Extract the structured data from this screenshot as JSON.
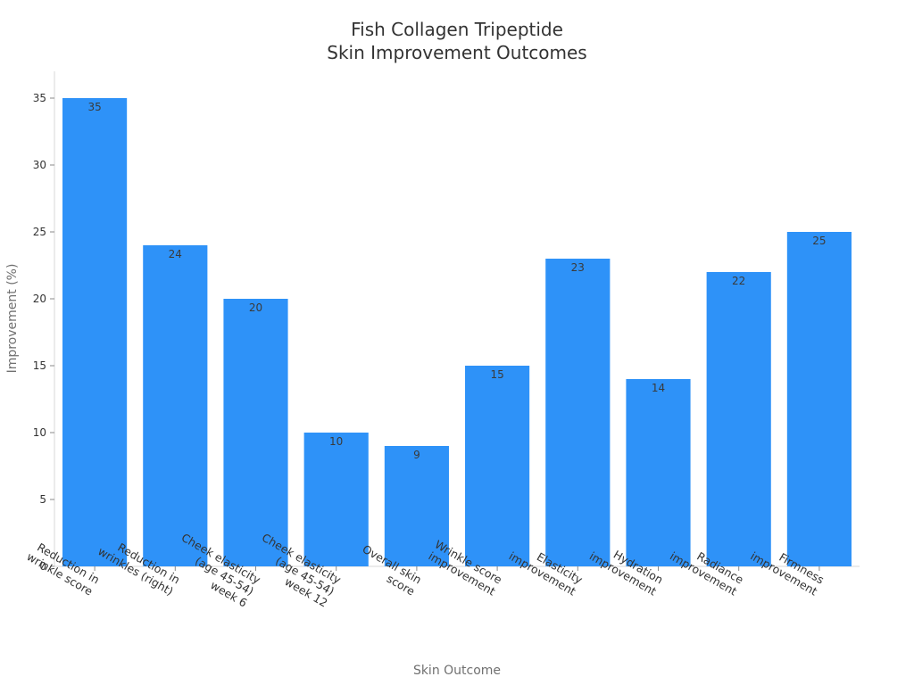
{
  "chart_data": {
    "type": "bar",
    "title": [
      "Fish Collagen Tripeptide",
      "Skin Improvement Outcomes"
    ],
    "xlabel": "Skin Outcome",
    "ylabel": "Improvement (%)",
    "ylim": [
      0,
      37
    ],
    "yticks": [
      0,
      5,
      10,
      15,
      20,
      25,
      30,
      35
    ],
    "grid": false,
    "bar_color": "#2e92f8",
    "categories": [
      [
        "Reduction in",
        "wrinkle score"
      ],
      [
        "Reduction in",
        "wrinkles (right)"
      ],
      [
        "Cheek elasticity",
        "(age 45-54)",
        "week 6"
      ],
      [
        "Cheek elasticity",
        "(age 45-54)",
        "week 12"
      ],
      [
        "Overall skin",
        "score"
      ],
      [
        "Wrinkle score",
        "improvement"
      ],
      [
        "Elasticity",
        "improvement"
      ],
      [
        "Hydration",
        "improvement"
      ],
      [
        "Radiance",
        "improvement"
      ],
      [
        "Firmness",
        "improvement"
      ]
    ],
    "values": [
      35,
      24,
      20,
      10,
      9,
      15,
      23,
      14,
      22,
      25
    ],
    "data_labels": [
      "35",
      "24",
      "20",
      "10",
      "9",
      "15",
      "23",
      "14",
      "22",
      "25"
    ]
  }
}
